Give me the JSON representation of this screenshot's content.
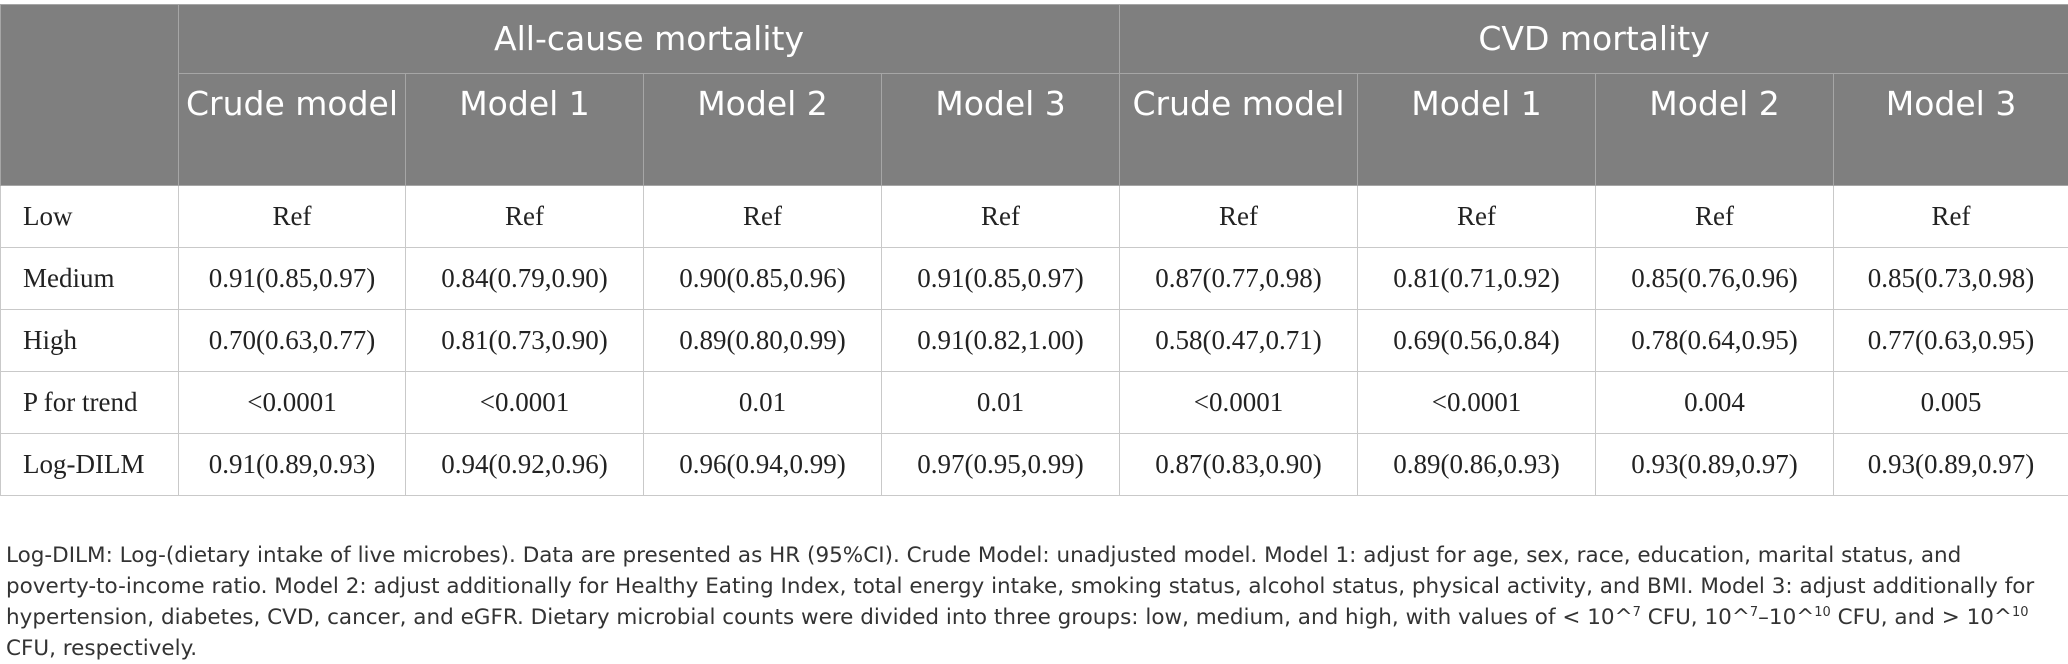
{
  "table": {
    "groups": [
      "All-cause mortality",
      "CVD mortality"
    ],
    "models": [
      "Crude model",
      "Model 1",
      "Model 2",
      "Model 3",
      "Crude model",
      "Model 1",
      "Model 2",
      "Model 3"
    ],
    "rows": [
      {
        "label": "Low",
        "cells": [
          "Ref",
          "Ref",
          "Ref",
          "Ref",
          "Ref",
          "Ref",
          "Ref",
          "Ref"
        ]
      },
      {
        "label": "Medium",
        "cells": [
          "0.91(0.85,0.97)",
          "0.84(0.79,0.90)",
          "0.90(0.85,0.96)",
          "0.91(0.85,0.97)",
          "0.87(0.77,0.98)",
          "0.81(0.71,0.92)",
          "0.85(0.76,0.96)",
          "0.85(0.73,0.98)"
        ]
      },
      {
        "label": "High",
        "cells": [
          "0.70(0.63,0.77)",
          "0.81(0.73,0.90)",
          "0.89(0.80,0.99)",
          "0.91(0.82,1.00)",
          "0.58(0.47,0.71)",
          "0.69(0.56,0.84)",
          "0.78(0.64,0.95)",
          "0.77(0.63,0.95)"
        ]
      },
      {
        "label": "P for trend",
        "cells": [
          "<0.0001",
          "<0.0001",
          "0.01",
          "0.01",
          "<0.0001",
          "<0.0001",
          "0.004",
          "0.005"
        ]
      },
      {
        "label": "Log-DILM",
        "cells": [
          "0.91(0.89,0.93)",
          "0.94(0.92,0.96)",
          "0.96(0.94,0.99)",
          "0.97(0.95,0.99)",
          "0.87(0.83,0.90)",
          "0.89(0.86,0.93)",
          "0.93(0.89,0.97)",
          "0.93(0.89,0.97)"
        ]
      }
    ]
  },
  "footnote": {
    "main": "Log-DILM: Log-(dietary intake of live microbes). Data are presented as HR (95%CI). Crude Model: unadjusted model. Model 1: adjust for age, sex, race, education, marital status, and poverty-to-income ratio. Model 2: adjust additionally for Healthy Eating Index, total energy intake, smoking status, alcohol status, physical activity, and BMI. Model 3: adjust additionally for hypertension, diabetes, CVD, cancer, and eGFR. Dietary microbial counts were divided into three groups: low, medium, and high, with values of < 10^",
    "exp1": "7",
    "mid1": " CFU, 10^",
    "exp2": "7",
    "mid2": "–10^",
    "exp3": "10",
    "mid3": " CFU, and > 10^",
    "exp4": "10",
    "tail": " CFU, respectively."
  }
}
